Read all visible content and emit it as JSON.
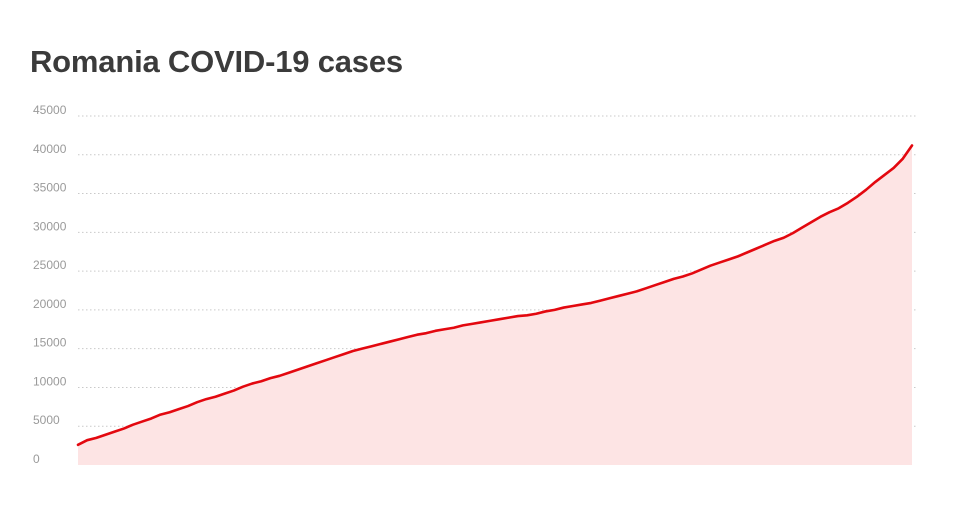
{
  "chart_data": {
    "type": "area",
    "title": "Romania COVID-19 cases",
    "xlabel": "",
    "ylabel": "",
    "ylim": [
      0,
      45000
    ],
    "yticks": [
      0,
      5000,
      10000,
      15000,
      20000,
      25000,
      30000,
      35000,
      40000,
      45000
    ],
    "grid": true,
    "legend": "none",
    "colors": {
      "line": "#e3080f",
      "fill": "#fde4e4",
      "grid": "#c9c9c9",
      "tick_text": "#9a9a9a",
      "title_text": "#3b3b3b"
    },
    "series": [
      {
        "values": [
          2600,
          3200,
          3500,
          3900,
          4300,
          4700,
          5200,
          5600,
          6000,
          6500,
          6800,
          7200,
          7600,
          8100,
          8500,
          8800,
          9200,
          9600,
          10100,
          10500,
          10800,
          11200,
          11500,
          11900,
          12300,
          12700,
          13100,
          13500,
          13900,
          14300,
          14700,
          15000,
          15300,
          15600,
          15900,
          16200,
          16500,
          16800,
          17000,
          17300,
          17500,
          17700,
          18000,
          18200,
          18400,
          18600,
          18800,
          19000,
          19200,
          19300,
          19500,
          19800,
          20000,
          20300,
          20500,
          20700,
          20900,
          21200,
          21500,
          21800,
          22100,
          22400,
          22800,
          23200,
          23600,
          24000,
          24300,
          24700,
          25200,
          25700,
          26100,
          26500,
          26900,
          27400,
          27900,
          28400,
          28900,
          29300,
          29900,
          30600,
          31300,
          32000,
          32600,
          33100,
          33800,
          34600,
          35500,
          36500,
          37400,
          38300,
          39500,
          41200
        ]
      }
    ]
  }
}
